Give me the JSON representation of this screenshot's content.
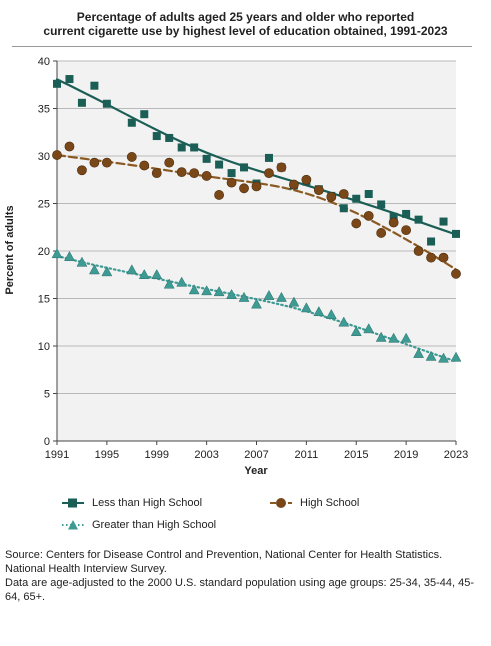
{
  "chart_data": {
    "type": "scatter",
    "title": "Percentage of adults aged 25 years and older who reported current cigarette use by highest level of education obtained, 1991-2023",
    "xlabel": "Year",
    "ylabel": "Percent of adults",
    "xlim": [
      1991,
      2023
    ],
    "ylim": [
      0,
      40
    ],
    "x_ticks": [
      1991,
      1995,
      1999,
      2003,
      2007,
      2011,
      2015,
      2019,
      2023
    ],
    "y_ticks": [
      0,
      5,
      10,
      15,
      20,
      25,
      30,
      35,
      40
    ],
    "grid": true,
    "legend_position": "bottom",
    "series": [
      {
        "name": "Less than High School",
        "marker": "square",
        "color": "#1a5e55",
        "line_style": "solid",
        "x": [
          1991,
          1992,
          1993,
          1994,
          1995,
          1997,
          1998,
          1999,
          2000,
          2001,
          2002,
          2003,
          2004,
          2005,
          2006,
          2007,
          2008,
          2009,
          2010,
          2011,
          2012,
          2013,
          2014,
          2015,
          2016,
          2017,
          2018,
          2019,
          2020,
          2021,
          2022,
          2023
        ],
        "y": [
          37.6,
          38.1,
          35.6,
          37.4,
          35.5,
          33.5,
          34.4,
          32.1,
          31.9,
          30.9,
          30.9,
          29.7,
          29.1,
          28.2,
          28.8,
          27.1,
          29.8,
          28.8,
          26.9,
          27.3,
          26.5,
          25.8,
          24.5,
          25.5,
          26.0,
          24.9,
          23.6,
          23.9,
          23.3,
          21.0,
          23.1,
          21.8
        ]
      },
      {
        "name": "High School",
        "marker": "circle",
        "color": "#7a4818",
        "line_style": "dashed",
        "x": [
          1991,
          1992,
          1993,
          1994,
          1995,
          1997,
          1998,
          1999,
          2000,
          2001,
          2002,
          2003,
          2004,
          2005,
          2006,
          2007,
          2008,
          2009,
          2010,
          2011,
          2012,
          2013,
          2014,
          2015,
          2016,
          2017,
          2018,
          2019,
          2020,
          2021,
          2022,
          2023
        ],
        "y": [
          30.1,
          31.0,
          28.5,
          29.3,
          29.3,
          29.9,
          29.0,
          28.2,
          29.3,
          28.3,
          28.2,
          27.9,
          25.9,
          27.2,
          26.6,
          26.8,
          28.2,
          28.8,
          27.0,
          27.5,
          26.4,
          25.7,
          26.0,
          22.9,
          23.7,
          21.9,
          23.0,
          22.2,
          20.0,
          19.3,
          19.3,
          17.6
        ]
      },
      {
        "name": "Greater than High School",
        "marker": "triangle",
        "color": "#3e9b94",
        "line_style": "dotted",
        "x": [
          1991,
          1992,
          1993,
          1994,
          1995,
          1997,
          1998,
          1999,
          2000,
          2001,
          2002,
          2003,
          2004,
          2005,
          2006,
          2007,
          2008,
          2009,
          2010,
          2011,
          2012,
          2013,
          2014,
          2015,
          2016,
          2017,
          2018,
          2019,
          2020,
          2021,
          2022,
          2023
        ],
        "y": [
          19.7,
          19.4,
          18.8,
          18.0,
          17.8,
          18.0,
          17.5,
          17.5,
          16.5,
          16.7,
          15.9,
          15.8,
          15.7,
          15.4,
          15.1,
          14.4,
          15.3,
          15.1,
          14.6,
          14.0,
          13.6,
          13.3,
          12.5,
          11.5,
          11.8,
          10.9,
          10.8,
          10.8,
          9.2,
          8.9,
          8.7,
          8.8
        ]
      }
    ]
  },
  "title_lines": [
    "Percentage of adults aged 25 years and older who reported",
    "current cigarette use by highest level of education obtained, 1991-2023"
  ],
  "legend": {
    "less_than_hs": "Less than High School",
    "high_school": "High School",
    "greater_than_hs": "Greater than High School"
  },
  "source": {
    "line1": "Source: Centers for Disease Control and Prevention, National Center for Health Statistics. National Health Interview Survey.",
    "line2": "Data are age-adjusted to the 2000 U.S. standard population using age groups: 25-34, 35-44, 45-64, 65+."
  }
}
